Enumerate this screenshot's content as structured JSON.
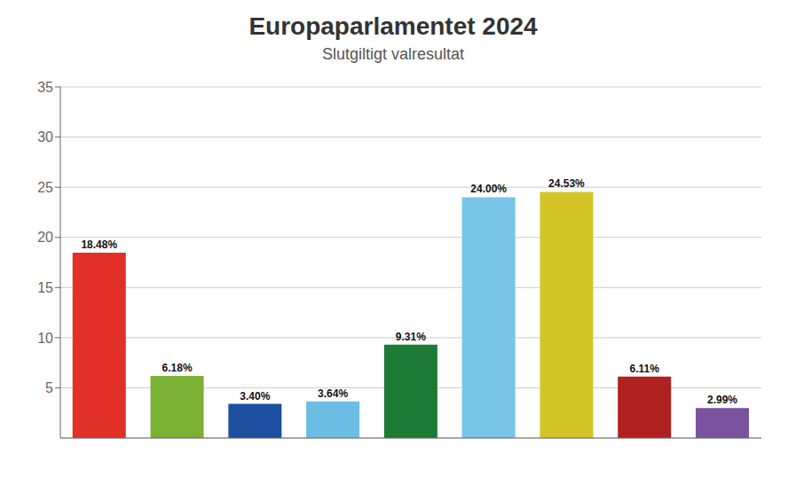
{
  "chart_data": {
    "type": "bar",
    "title": "Europaparlamentet 2024",
    "subtitle": "Slutgiltigt valresultat",
    "categories": [
      null,
      null,
      null,
      null,
      null,
      null,
      null,
      null,
      null
    ],
    "values": [
      18.48,
      6.18,
      3.4,
      3.64,
      9.31,
      24.0,
      24.53,
      6.11,
      2.99
    ],
    "value_labels": [
      "18.48%",
      "6.18%",
      "3.40%",
      "3.64%",
      "9.31%",
      "24.00%",
      "24.53%",
      "6.11%",
      "2.99%"
    ],
    "data_labels": true,
    "colors": [
      "#e03028",
      "#7ab034",
      "#1c4fa0",
      "#6bbde3",
      "#1d7a34",
      "#78c5e8",
      "#d4c527",
      "#b02020",
      "#7b52a0"
    ],
    "ylim": [
      0,
      35
    ],
    "yticks": [
      5,
      10,
      15,
      20,
      25,
      30,
      35
    ],
    "grid": true,
    "tick_labels": "y"
  }
}
